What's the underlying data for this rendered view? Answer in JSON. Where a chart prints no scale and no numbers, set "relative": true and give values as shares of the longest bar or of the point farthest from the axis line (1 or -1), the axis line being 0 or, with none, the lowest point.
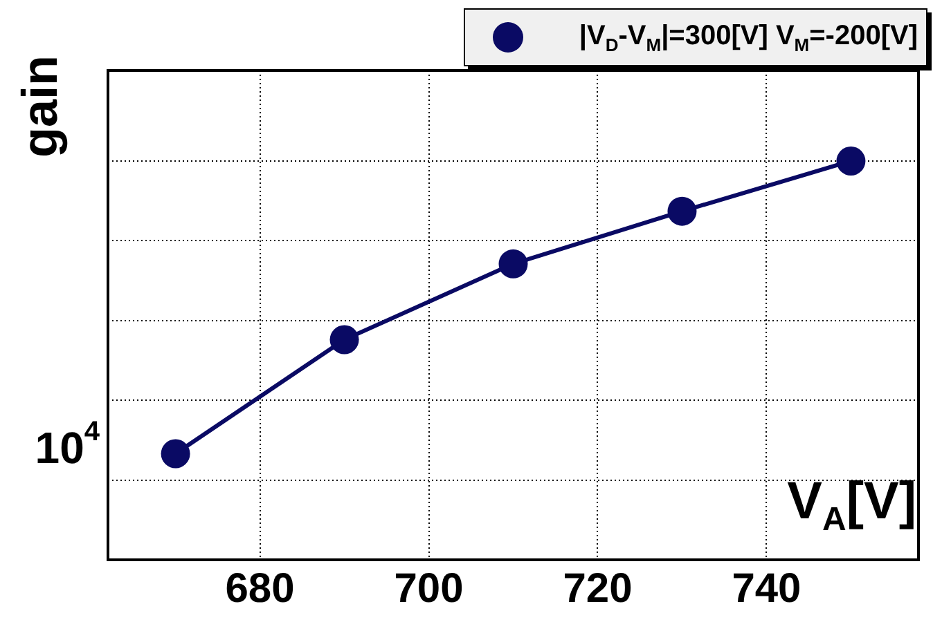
{
  "chart_data": {
    "type": "line",
    "ylabel": "gain",
    "xlabel": "V$_{A}$[V]",
    "series": [
      {
        "name": "|V$_{D}$-V$_{M}$|=300[V] V$_{M}$=-200[V]",
        "color": "#0a0a64",
        "x": [
          670,
          690,
          710,
          730,
          750
        ],
        "values": [
          0.266,
          0.552,
          0.742,
          0.874,
          1
        ]
      }
    ],
    "relative": true,
    "xlim": [
      662,
      758
    ],
    "xticks": [
      680,
      700,
      720,
      740
    ],
    "annotations": [
      "10$^{4}$"
    ],
    "grid": true,
    "legend": "top right",
    "marker": "circle",
    "line_style": "solid"
  }
}
